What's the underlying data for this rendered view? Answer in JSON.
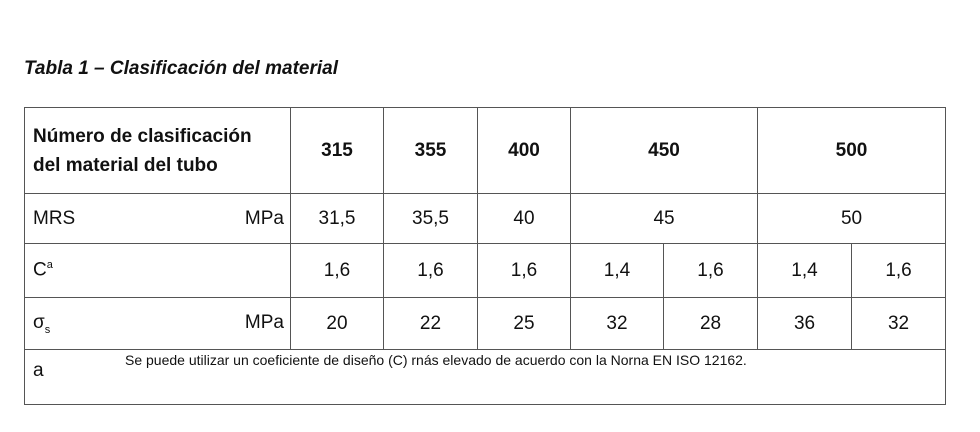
{
  "title": "Tabla 1 – Clasificación del material",
  "table": {
    "header": {
      "label_lines": [
        "Número de clasificación",
        "del material del tubo"
      ],
      "classes": [
        "315",
        "355",
        "400",
        "450",
        "500"
      ]
    },
    "rows": [
      {
        "label": "MRS",
        "unit": "MPa",
        "values": [
          "31,5",
          "35,5",
          "40",
          "45",
          "50"
        ]
      },
      {
        "label": "C",
        "label_sup": "a",
        "values": [
          "1,6",
          "1,6",
          "1,6",
          "1,4",
          "1,6",
          "1,4",
          "1,6"
        ]
      },
      {
        "label": "σ",
        "label_sub": "s",
        "unit": "MPa",
        "values": [
          "20",
          "22",
          "25",
          "32",
          "28",
          "36",
          "32"
        ]
      }
    ],
    "footnote": {
      "marker": "a",
      "text": "Se puede utilizar un coeficiente de diseño (C) rnás elevado de acuerdo con la Norna EN ISO 12162."
    }
  }
}
